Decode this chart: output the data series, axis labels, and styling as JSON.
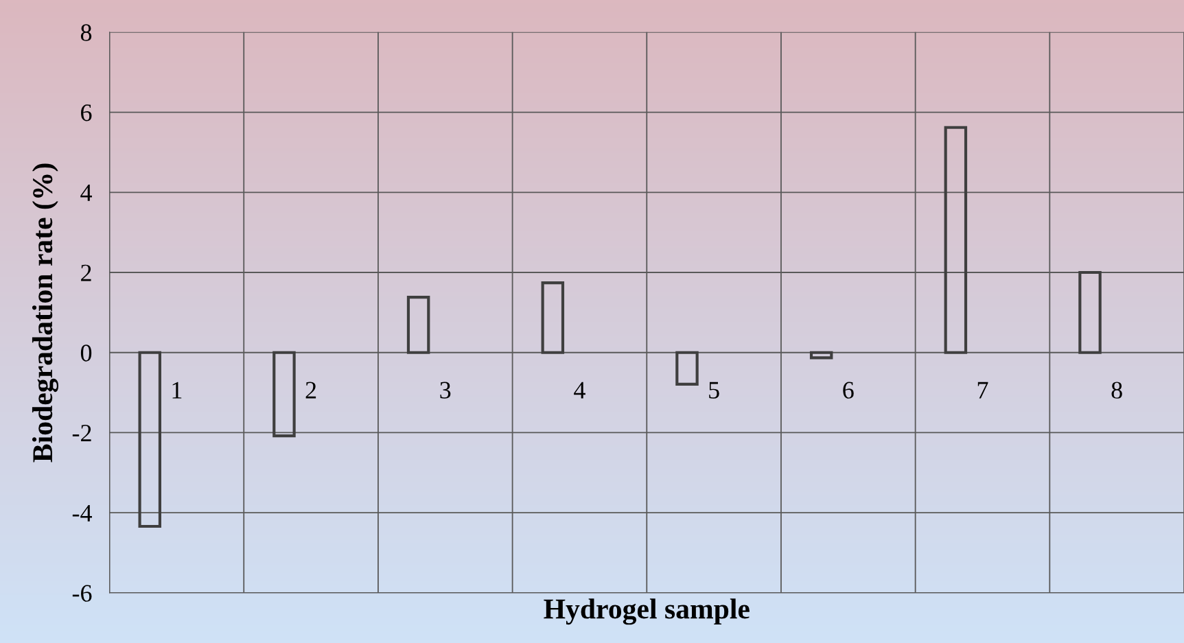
{
  "chart_data": {
    "type": "bar",
    "xlabel": "Hydrogel sample",
    "ylabel": "Biodegradation rate (%)",
    "categories": [
      "1",
      "2",
      "3",
      "4",
      "5",
      "6",
      "7",
      "8"
    ],
    "series": [
      {
        "color": "#3f3f3f",
        "values": [
          -4.34,
          -2.08,
          1.38,
          1.74,
          -0.79,
          -0.13,
          5.62,
          2.0
        ]
      }
    ],
    "ylim": [
      -6,
      8
    ],
    "yticks": [
      -6,
      -4,
      -2,
      0,
      2,
      4,
      6,
      8
    ],
    "grid": true,
    "legend": false
  }
}
